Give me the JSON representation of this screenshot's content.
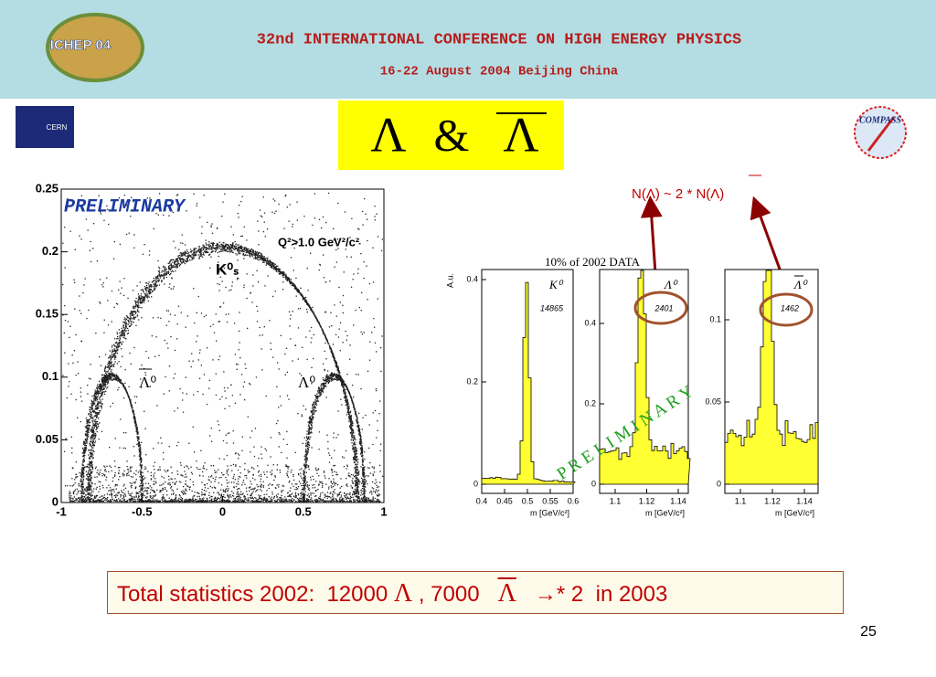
{
  "header": {
    "title": "32nd INTERNATIONAL CONFERENCE ON HIGH ENERGY PHYSICS",
    "subtitle": "16-22 August 2004 Beijing China",
    "logo": "ICHEP 04"
  },
  "logos": {
    "left": "CERN",
    "right": "COMPASS"
  },
  "slide_title": {
    "left": "Λ",
    "amp": "&",
    "right": "Λ"
  },
  "annotation": {
    "left": "N(Λ) ~ 2 * N(Λ)"
  },
  "armenteros": {
    "watermark": "PRELIMINARY",
    "cut": "Q²>1.0 GeV²/c²",
    "k0s": "K⁰ₛ",
    "antilambda": "Λ⁰",
    "lambda": "Λ⁰",
    "xticks": [
      -1,
      -0.5,
      0,
      0.5,
      1
    ],
    "yticks": [
      0,
      0.05,
      0.1,
      0.15,
      0.2,
      0.25
    ]
  },
  "histograms": {
    "title": "10% of 2002 DATA",
    "watermark": "P R E L I M I N A R Y",
    "panels": [
      {
        "y_label": "A.u.",
        "particle": "K⁰",
        "count": "14865",
        "x_label": "m [GeV/c²]",
        "xticks": [
          0.4,
          0.45,
          0.5,
          0.55,
          0.6
        ],
        "yticks": [
          0,
          0.2,
          0.4
        ]
      },
      {
        "particle": "Λ⁰",
        "count": "2401",
        "x_label": "m [GeV/c²]",
        "xticks": [
          1.1,
          1.12,
          1.14
        ],
        "yticks": [
          0,
          0.2,
          0.4
        ]
      },
      {
        "particle": "Λ⁰",
        "count": "1462",
        "x_label": "m [GeV/c²]",
        "xticks": [
          1.1,
          1.12,
          1.14
        ],
        "yticks": [
          0,
          0.05,
          0.1
        ]
      }
    ]
  },
  "summary": {
    "part1": "Total statistics 2002:  12000",
    "lambda": "Λ",
    "part2": ", 7000",
    "antilambda": "Λ",
    "part3": "→* 2  in 2003"
  },
  "page_number": "25"
}
